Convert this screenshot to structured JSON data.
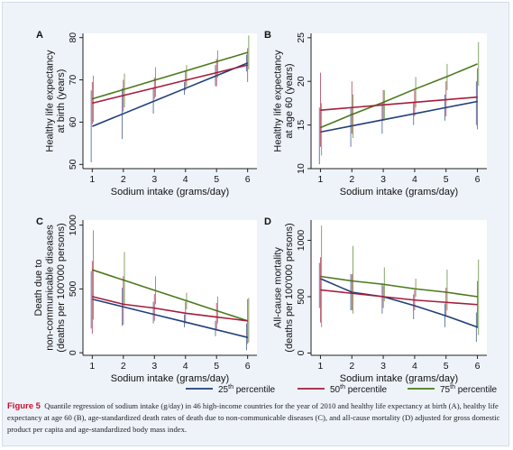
{
  "figure": {
    "label": "Figure 5",
    "caption": "Quantile regression of sodium intake (g/day) in 46 high-income countries for the year of 2010 and healthy life expectancy at birth (A), healthy life expectancy at age 60 (B), age-standardized death rates of death due to non-communicable diseases (C), and all-cause mortality (D) adjusted for gross domestic product per capita and age-standardized body mass index."
  },
  "colors": {
    "p25": "#1f3f7a",
    "p50": "#a61c3c",
    "p75": "#4a7a1c",
    "ci": "#8c8c8c",
    "axis": "#222222"
  },
  "legend": [
    {
      "key": "p25",
      "num": "25",
      "sup": "th",
      "text": " percentile"
    },
    {
      "key": "p50",
      "num": "50",
      "sup": "th",
      "text": " percentile"
    },
    {
      "key": "p75",
      "num": "75",
      "sup": "th",
      "text": " percentile"
    }
  ],
  "chart_data": [
    {
      "panel": "A",
      "type": "line",
      "xlabel": "Sodium intake (grams/day)",
      "ylabel": [
        "Healthy life expectancy",
        "at birth (years)"
      ],
      "x": [
        1,
        2,
        3,
        4,
        5,
        6
      ],
      "xlim": [
        0.7,
        6.3
      ],
      "ylim": [
        49,
        81
      ],
      "yticks": [
        50,
        60,
        70,
        80
      ],
      "series": [
        {
          "key": "p25",
          "values": [
            59.0,
            62.0,
            65.0,
            68.0,
            71.0,
            74.0
          ],
          "ci_low": [
            50.5,
            56.0,
            62.0,
            66.5,
            68.5,
            72.0
          ],
          "ci_high": [
            67.5,
            68.0,
            68.0,
            69.5,
            73.5,
            76.0
          ]
        },
        {
          "key": "p50",
          "values": [
            64.5,
            66.3,
            68.1,
            69.9,
            71.7,
            73.5
          ],
          "ci_low": [
            59.5,
            62.5,
            65.5,
            67.5,
            68.5,
            69.5
          ],
          "ci_high": [
            69.5,
            70.0,
            70.5,
            72.0,
            75.0,
            77.5
          ]
        },
        {
          "key": "p75",
          "values": [
            65.5,
            67.7,
            69.9,
            72.1,
            74.3,
            76.5
          ],
          "ci_low": [
            60.0,
            63.5,
            66.0,
            68.5,
            70.5,
            72.5
          ],
          "ci_high": [
            71.0,
            71.5,
            73.0,
            73.5,
            77.0,
            80.5
          ]
        }
      ]
    },
    {
      "panel": "B",
      "type": "line",
      "xlabel": "Sodium intake (grams/day)",
      "ylabel": [
        "Healthy life expectancy",
        "at age 60 (years)"
      ],
      "x": [
        1,
        2,
        3,
        4,
        5,
        6
      ],
      "xlim": [
        0.7,
        6.3
      ],
      "ylim": [
        10,
        25.5
      ],
      "yticks": [
        10,
        15,
        20,
        25
      ],
      "series": [
        {
          "key": "p25",
          "values": [
            14.2,
            14.9,
            15.6,
            16.3,
            17.0,
            17.7
          ],
          "ci_low": [
            10.5,
            12.5,
            14.0,
            15.0,
            15.5,
            15.0
          ],
          "ci_high": [
            17.0,
            17.0,
            17.5,
            17.5,
            18.5,
            20.0
          ]
        },
        {
          "key": "p50",
          "values": [
            16.7,
            17.0,
            17.3,
            17.6,
            17.9,
            18.2
          ],
          "ci_low": [
            12.5,
            14.0,
            15.5,
            16.0,
            16.0,
            14.5
          ],
          "ci_high": [
            21.0,
            20.0,
            19.0,
            19.0,
            20.0,
            21.5
          ]
        },
        {
          "key": "p75",
          "values": [
            14.7,
            16.2,
            17.6,
            19.1,
            20.5,
            22.0
          ],
          "ci_low": [
            11.5,
            13.5,
            15.5,
            17.0,
            19.0,
            19.5
          ],
          "ci_high": [
            17.5,
            18.5,
            19.0,
            20.5,
            22.0,
            24.5
          ]
        }
      ]
    },
    {
      "panel": "C",
      "type": "line",
      "xlabel": "Sodium intake (grams/day)",
      "ylabel": [
        "Death due to",
        "non-communicable diseases",
        "(deaths per 100'000 persons)"
      ],
      "x": [
        1,
        2,
        3,
        4,
        5,
        6
      ],
      "xlim": [
        0.7,
        6.3
      ],
      "ylim": [
        -20,
        1040
      ],
      "yticks": [
        0,
        500,
        1000
      ],
      "series": [
        {
          "key": "p25",
          "values": [
            420,
            360,
            300,
            240,
            180,
            120
          ],
          "ci_low": [
            190,
            210,
            230,
            200,
            130,
            20
          ],
          "ci_high": [
            640,
            510,
            400,
            300,
            250,
            230
          ]
        },
        {
          "key": "p50",
          "values": [
            440,
            380,
            350,
            310,
            280,
            250
          ],
          "ci_low": [
            150,
            220,
            250,
            230,
            180,
            70
          ],
          "ci_high": [
            720,
            600,
            460,
            400,
            390,
            420
          ]
        },
        {
          "key": "p75",
          "values": [
            650,
            570,
            490,
            410,
            330,
            250
          ],
          "ci_low": [
            260,
            370,
            380,
            340,
            230,
            80
          ],
          "ci_high": [
            960,
            790,
            600,
            470,
            440,
            430
          ]
        }
      ]
    },
    {
      "panel": "D",
      "type": "line",
      "xlabel": "Sodium intake (grams/day)",
      "ylabel": [
        "All-cause mortality",
        "(deaths per 100'000 persons)"
      ],
      "x": [
        1,
        2,
        3,
        4,
        5,
        6
      ],
      "xlim": [
        0.7,
        6.3
      ],
      "ylim": [
        -20,
        1180
      ],
      "yticks": [
        0,
        500,
        1000
      ],
      "series": [
        {
          "key": "p25",
          "values": [
            660,
            540,
            500,
            420,
            330,
            230
          ],
          "ci_low": [
            400,
            380,
            350,
            300,
            230,
            100
          ],
          "ci_high": [
            800,
            700,
            620,
            520,
            440,
            360
          ]
        },
        {
          "key": "p50",
          "values": [
            560,
            530,
            500,
            470,
            450,
            430
          ],
          "ci_low": [
            270,
            380,
            400,
            380,
            320,
            220
          ],
          "ci_high": [
            850,
            700,
            600,
            560,
            580,
            640
          ]
        },
        {
          "key": "p75",
          "values": [
            680,
            640,
            610,
            570,
            540,
            500
          ],
          "ci_low": [
            230,
            350,
            460,
            500,
            380,
            160
          ],
          "ci_high": [
            1130,
            950,
            760,
            660,
            740,
            830
          ]
        }
      ]
    }
  ]
}
